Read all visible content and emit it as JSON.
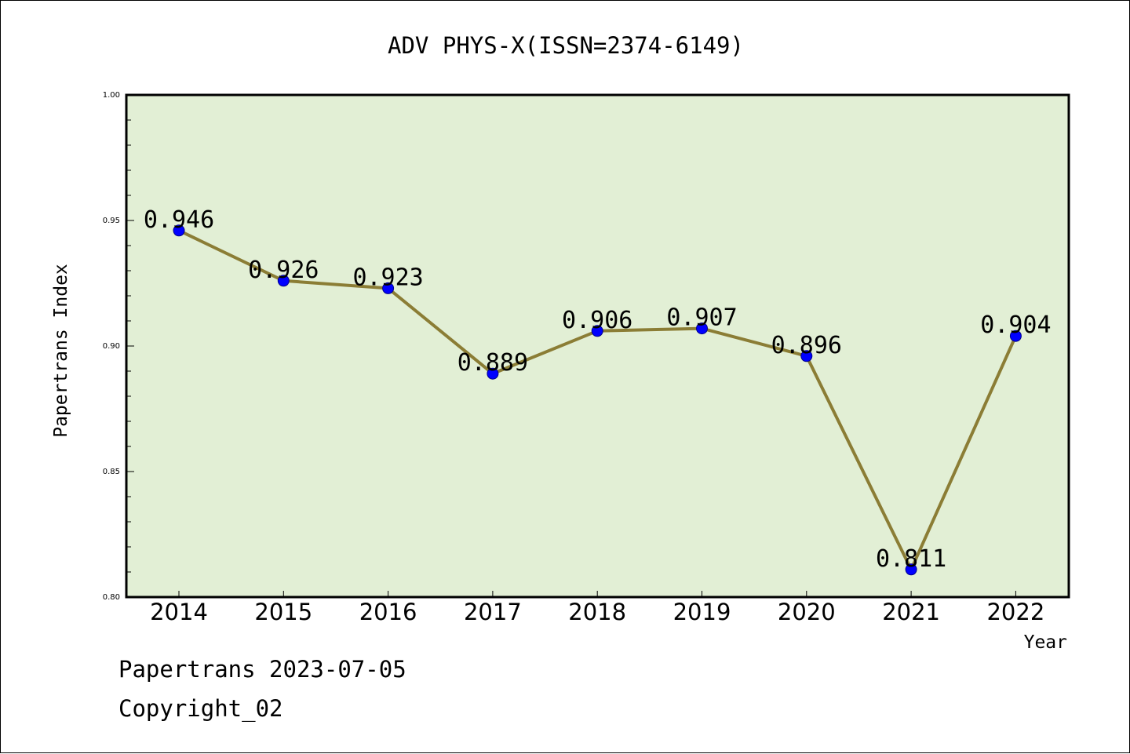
{
  "chart_data": {
    "type": "line",
    "title": "ADV PHYS-X(ISSN=2374-6149)",
    "xlabel": "Year",
    "ylabel": "Papertrans Index",
    "categories": [
      "2014",
      "2015",
      "2016",
      "2017",
      "2018",
      "2019",
      "2020",
      "2021",
      "2022"
    ],
    "series": [
      {
        "values": [
          0.946,
          0.926,
          0.923,
          0.889,
          0.906,
          0.907,
          0.896,
          0.811,
          0.904
        ],
        "data_labels": [
          "0.946",
          "0.926",
          "0.923",
          "0.889",
          "0.906",
          "0.907",
          "0.896",
          "0.811",
          "0.904"
        ]
      }
    ],
    "ylim": [
      0.8,
      1.0
    ],
    "yticks": [
      "0.80",
      "0.85",
      "0.90",
      "0.95",
      "1.00"
    ],
    "grid": false,
    "legend": "none",
    "colors": {
      "plot_background": "#e2efd5",
      "line": "#8b7d35",
      "marker": "#0000ff"
    }
  },
  "footer": {
    "line1": "Papertrans 2023-07-05",
    "line2": "Copyright_02"
  }
}
